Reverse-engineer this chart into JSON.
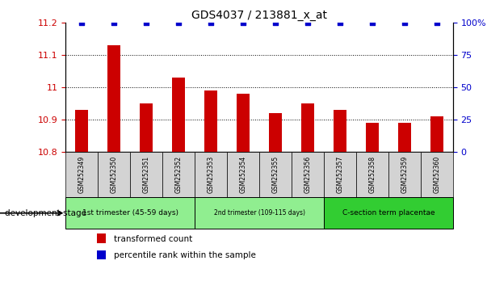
{
  "title": "GDS4037 / 213881_x_at",
  "samples": [
    "GSM252349",
    "GSM252350",
    "GSM252351",
    "GSM252352",
    "GSM252353",
    "GSM252354",
    "GSM252355",
    "GSM252356",
    "GSM252357",
    "GSM252358",
    "GSM252359",
    "GSM252360"
  ],
  "bar_values": [
    10.93,
    11.13,
    10.95,
    11.03,
    10.99,
    10.98,
    10.92,
    10.95,
    10.93,
    10.89,
    10.89,
    10.91
  ],
  "percentile_values": [
    100,
    100,
    100,
    100,
    100,
    100,
    100,
    100,
    100,
    100,
    100,
    100
  ],
  "bar_color": "#cc0000",
  "percentile_color": "#0000cc",
  "ylim_left": [
    10.8,
    11.2
  ],
  "ylim_right": [
    0,
    100
  ],
  "yticks_left": [
    10.8,
    10.9,
    11.0,
    11.1,
    11.2
  ],
  "yticks_right": [
    0,
    25,
    50,
    75,
    100
  ],
  "ytick_labels_left": [
    "10.8",
    "10.9",
    "11",
    "11.1",
    "11.2"
  ],
  "ytick_labels_right": [
    "0",
    "25",
    "50",
    "75",
    "100%"
  ],
  "groups": [
    {
      "label": "1st trimester (45-59 days)",
      "start": 0,
      "end": 3
    },
    {
      "label": "2nd trimester (109-115 days)",
      "start": 4,
      "end": 7
    },
    {
      "label": "C-section term placentae",
      "start": 8,
      "end": 11
    }
  ],
  "group_colors": [
    "#90ee90",
    "#90ee90",
    "#32cd32"
  ],
  "xlabel_left": "development stage",
  "legend_bar_label": "transformed count",
  "legend_pct_label": "percentile rank within the sample",
  "xticklabel_bg": "#cccccc",
  "bar_width": 0.4
}
